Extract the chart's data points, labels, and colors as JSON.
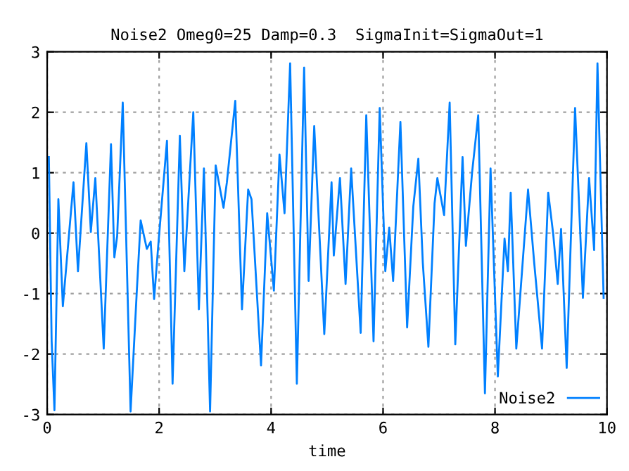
{
  "chart_data": {
    "type": "line",
    "title": "Noise2 Omeg0=25 Damp=0.3  SigmaInit=SigmaOut=1",
    "xlabel": "time",
    "series": [
      {
        "name": "Noise2",
        "color": "#0080ff",
        "x": [
          0.03,
          0.08,
          0.13,
          0.2,
          0.28,
          0.47,
          0.55,
          0.7,
          0.78,
          0.86,
          1.01,
          1.14,
          1.2,
          1.25,
          1.35,
          1.49,
          1.6,
          1.67,
          1.78,
          1.85,
          1.91,
          1.99,
          2.14,
          2.24,
          2.37,
          2.45,
          2.61,
          2.71,
          2.8,
          2.91,
          3.01,
          3.15,
          3.21,
          3.36,
          3.48,
          3.59,
          3.65,
          3.82,
          3.93,
          4.05,
          4.15,
          4.24,
          4.34,
          4.46,
          4.59,
          4.67,
          4.77,
          4.95,
          5.08,
          5.12,
          5.23,
          5.33,
          5.43,
          5.6,
          5.7,
          5.83,
          5.94,
          6.04,
          6.11,
          6.18,
          6.31,
          6.43,
          6.54,
          6.63,
          6.71,
          6.81,
          6.92,
          6.97,
          7.09,
          7.19,
          7.29,
          7.42,
          7.48,
          7.59,
          7.7,
          7.82,
          7.92,
          8.05,
          8.17,
          8.23,
          8.28,
          8.38,
          8.59,
          8.7,
          8.84,
          8.95,
          9.04,
          9.12,
          9.18,
          9.28,
          9.43,
          9.57,
          9.68,
          9.77,
          9.83,
          9.94
        ],
        "values": [
          1.26,
          -1.79,
          -2.93,
          0.56,
          -1.21,
          0.84,
          -0.63,
          1.49,
          0.02,
          0.91,
          -1.91,
          1.47,
          -0.4,
          -0.05,
          2.16,
          -2.95,
          -0.98,
          0.21,
          -0.26,
          -0.14,
          -1.09,
          -0.14,
          1.53,
          -2.49,
          1.61,
          -0.63,
          2.0,
          -1.26,
          1.07,
          -2.95,
          1.12,
          0.42,
          0.84,
          2.19,
          -1.26,
          0.72,
          0.56,
          -2.19,
          0.33,
          -0.95,
          1.3,
          0.33,
          2.81,
          -2.49,
          2.74,
          -0.79,
          1.77,
          -1.67,
          0.84,
          -0.37,
          0.91,
          -0.84,
          1.07,
          -1.65,
          1.95,
          -1.79,
          2.07,
          -0.63,
          0.09,
          -0.79,
          1.84,
          -1.56,
          0.44,
          1.23,
          -0.49,
          -1.88,
          0.49,
          0.91,
          0.3,
          2.16,
          -1.84,
          1.26,
          -0.21,
          1.0,
          1.95,
          -2.65,
          1.07,
          -2.37,
          -0.09,
          -0.63,
          0.67,
          -1.91,
          0.72,
          -0.49,
          -1.91,
          0.67,
          -0.02,
          -0.84,
          0.07,
          -2.23,
          2.07,
          -1.07,
          0.91,
          -0.28,
          2.81,
          -1.07
        ]
      }
    ],
    "xlim": [
      0,
      10
    ],
    "ylim": [
      -3,
      3
    ],
    "xticks": [
      0,
      2,
      4,
      6,
      8,
      10
    ],
    "yticks": [
      -3,
      -2,
      -1,
      0,
      1,
      2,
      3
    ],
    "grid": true,
    "legend": "bottom right",
    "line_style": "solid",
    "marker": "none"
  }
}
